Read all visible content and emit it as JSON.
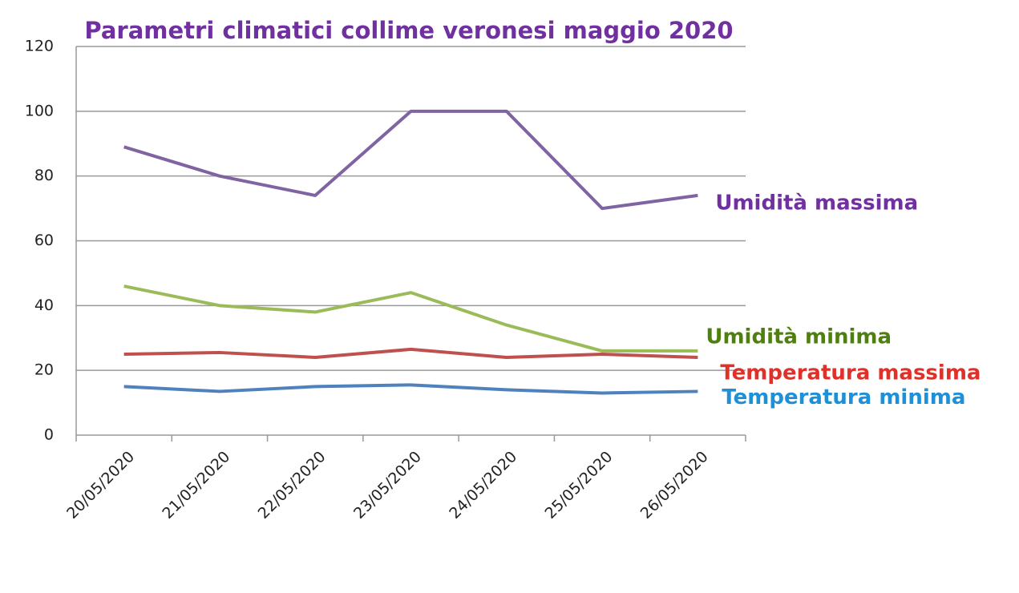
{
  "chart_data": {
    "type": "line",
    "title": "Parametri climatici collime veronesi maggio 2020",
    "categories": [
      "20/05/2020",
      "21/05/2020",
      "22/05/2020",
      "23/05/2020",
      "24/05/2020",
      "25/05/2020",
      "26/05/2020"
    ],
    "series": [
      {
        "name": "Umidità massima",
        "color": "#8064a2",
        "label_color": "#7030a0",
        "values": [
          89,
          80,
          74,
          100,
          100,
          70,
          74
        ]
      },
      {
        "name": "Umidità minima",
        "color": "#9bbb59",
        "label_color": "#4f7f0f",
        "values": [
          46,
          40,
          38,
          44,
          34,
          26,
          26
        ]
      },
      {
        "name": "Temperatura massima",
        "color": "#c0504d",
        "label_color": "#e0302a",
        "values": [
          25,
          25.5,
          24,
          26.5,
          24,
          25,
          24
        ]
      },
      {
        "name": "Temperatura minima",
        "color": "#4f81bd",
        "label_color": "#1e90d8",
        "values": [
          15,
          13.5,
          15,
          15.5,
          14,
          13,
          13.5
        ]
      }
    ],
    "ylim": [
      0,
      120
    ],
    "yticks": [
      0,
      20,
      40,
      60,
      80,
      100,
      120
    ],
    "grid": true
  }
}
